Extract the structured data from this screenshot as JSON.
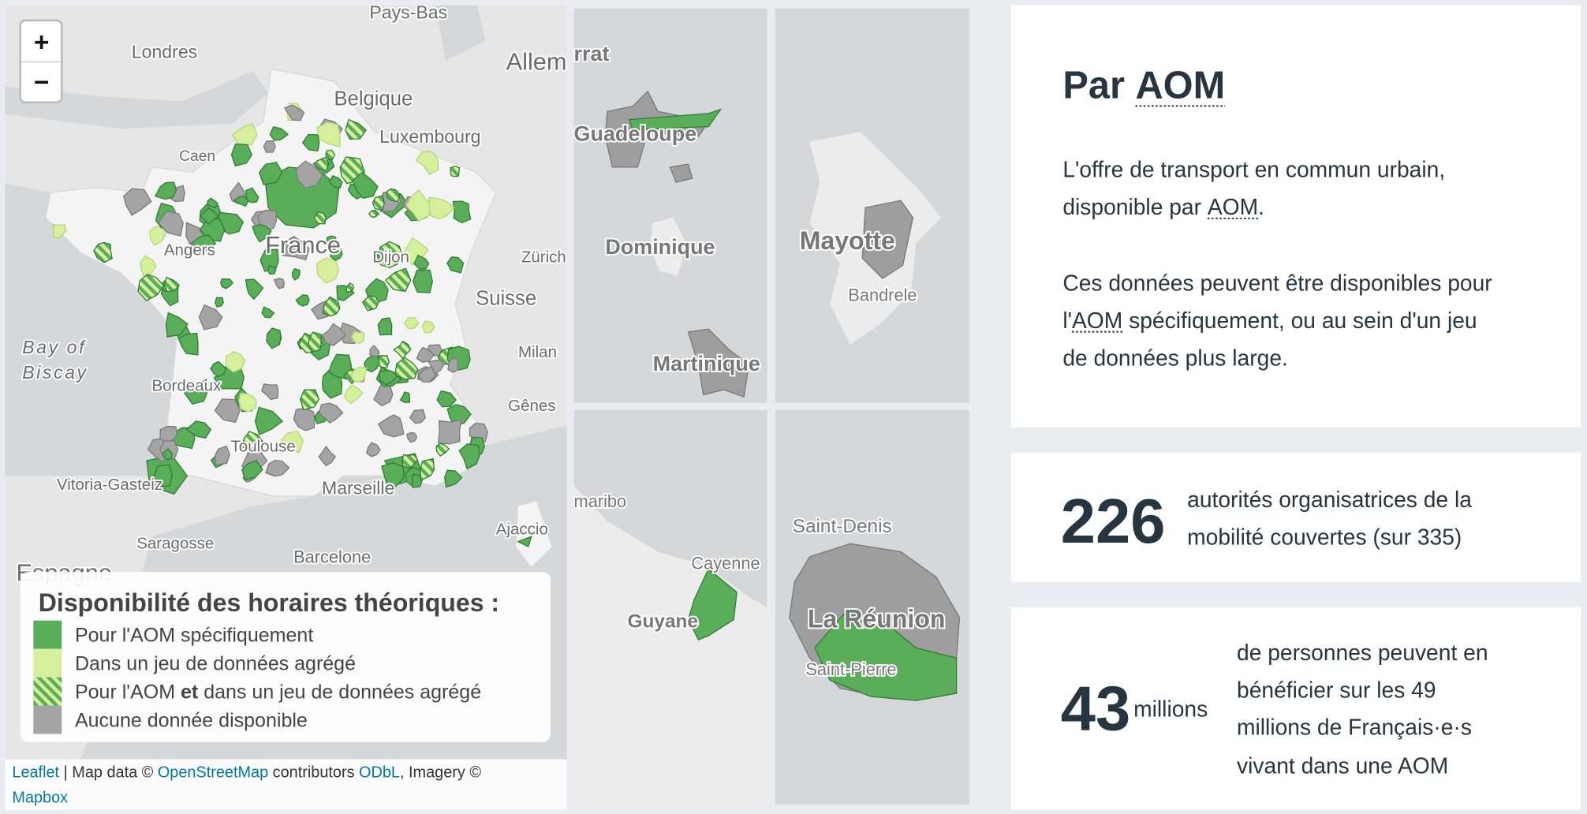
{
  "map": {
    "zoom_in": "+",
    "zoom_out": "−",
    "labels": [
      "Pays-Bas",
      "Londres",
      "Allem",
      "Belgique",
      "Luxembourg",
      "France",
      "Angers",
      "Dijon",
      "Zürich",
      "Suisse",
      "Bay of",
      "Biscay",
      "Milan",
      "Bordeaux",
      "Gênes",
      "Toulouse",
      "Vitoria-Gasteiz",
      "Marseille",
      "Saragosse",
      "Barcelone",
      "Ajaccio",
      "Espagne",
      "Caen"
    ],
    "inset_labels": [
      "rrat",
      "Guadeloupe",
      "Dominique",
      "Martinique",
      "Mayotte",
      "Bandrele",
      "maribo",
      "Cayenne",
      "Guyane",
      "Saint-Denis",
      "La Réunion",
      "Saint-Pierre"
    ],
    "legend": {
      "title": "Disponibilité des horaires théoriques :",
      "items": [
        [
          "Pour l'AOM spécifiquement"
        ],
        [
          "Dans un jeu de données agrégé"
        ],
        [
          "Pour l'AOM ",
          "et",
          " dans un jeu de données agrégé"
        ],
        [
          "Aucune donnée disponible"
        ]
      ]
    },
    "attribution": [
      [
        "Leaflet",
        " | Map data © ",
        "OpenStreetMap",
        " contributors ",
        "ODbL",
        ", Imagery ©"
      ],
      [
        "Mapbox"
      ]
    ]
  },
  "panel": {
    "title": [
      "Par ",
      "AOM"
    ],
    "paragraphs": [
      [
        [
          "L'offre de transport en commun urbain,"
        ],
        [
          "disponible par ",
          "AOM",
          "."
        ]
      ],
      [
        [
          "Ces données peuvent être disponibles pour"
        ],
        [
          "l'",
          "AOM",
          " spécifiquement, ou au sein d'un jeu"
        ],
        [
          "de données plus large."
        ]
      ]
    ]
  },
  "stats": [
    {
      "value": 226,
      "text": [
        "autorités organisatrices de la",
        "mobilité couvertes (sur 335)"
      ]
    },
    {
      "value": 43,
      "unit": "millions",
      "text": [
        "de personnes peuvent en",
        "bénéficier sur les 49",
        "millions de Français·e·s",
        "vivant dans une AOM"
      ]
    }
  ]
}
